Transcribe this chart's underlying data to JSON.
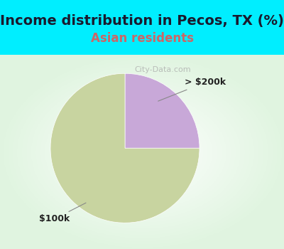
{
  "title": "Income distribution in Pecos, TX (%)",
  "subtitle": "Asian residents",
  "title_fontsize": 14,
  "subtitle_fontsize": 12,
  "title_color": "#1a1a2e",
  "subtitle_color": "#cc6666",
  "bg_color_top": "#00eeff",
  "slices": [
    75.0,
    25.0
  ],
  "slice_colors": [
    "#c8d4a0",
    "#c8a8d8"
  ],
  "labels": [
    "$100k",
    "> $200k"
  ],
  "figsize": [
    4.0,
    3.5
  ],
  "dpi": 100,
  "watermark": "City-Data.com"
}
